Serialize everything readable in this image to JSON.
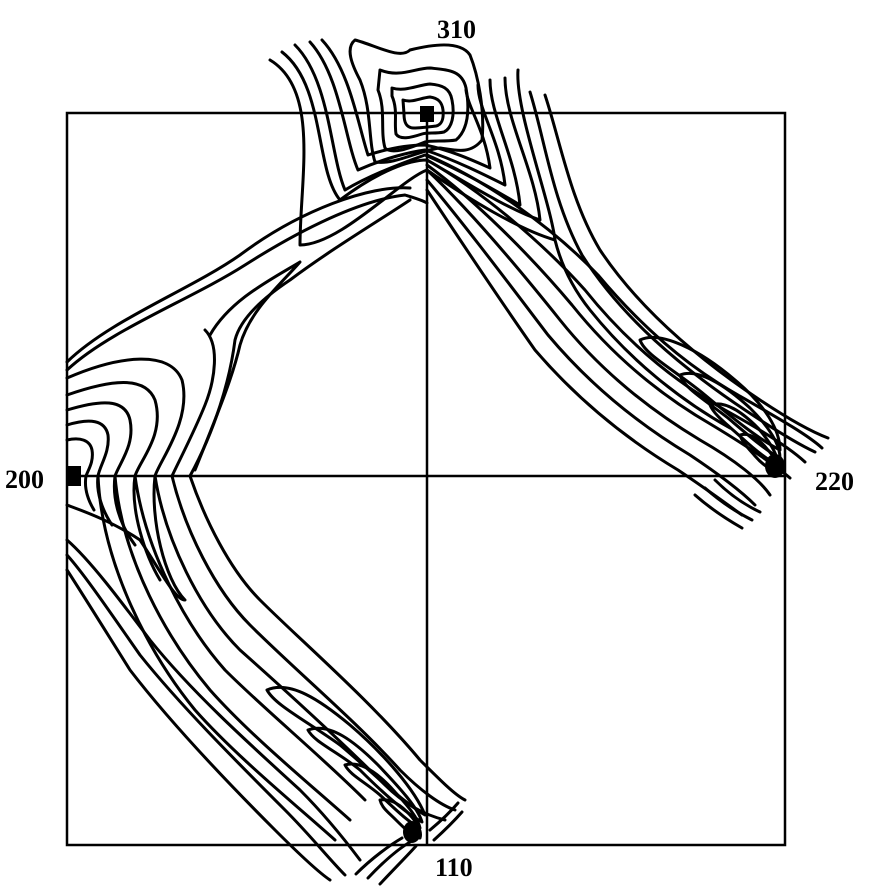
{
  "figure": {
    "labels": {
      "top": "310",
      "left": "200",
      "right": "220",
      "bottom": "110"
    },
    "ink_color": "#000000",
    "background_color": "#ffffff"
  }
}
